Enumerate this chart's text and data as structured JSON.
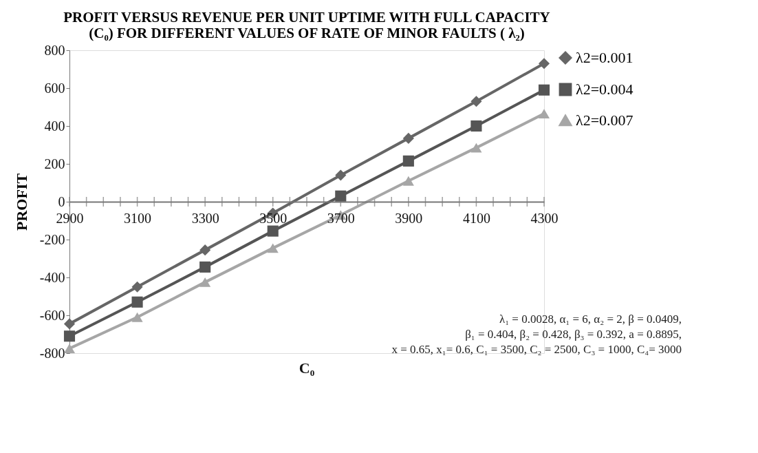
{
  "chart_data": {
    "type": "line",
    "title": "PROFIT VERSUS REVENUE PER UNIT UPTIME WITH FULL CAPACITY (C₀) FOR DIFFERENT VALUES OF RATE OF MINOR FAULTS ( λ₂)",
    "xlabel": "C₀",
    "ylabel": "PROFIT",
    "x": [
      2900,
      3100,
      3300,
      3500,
      3700,
      3900,
      4100,
      4300
    ],
    "series": [
      {
        "name": "λ2=0.001",
        "color": "#666666",
        "marker": "diamond",
        "values": [
          -645,
          -450,
          -255,
          -60,
          140,
          335,
          530,
          730
        ]
      },
      {
        "name": "λ2=0.004",
        "color": "#555555",
        "marker": "square",
        "values": [
          -710,
          -530,
          -345,
          -155,
          30,
          215,
          400,
          590
        ]
      },
      {
        "name": "λ2=0.007",
        "color": "#a6a6a6",
        "marker": "triangle",
        "values": [
          -775,
          -610,
          -425,
          -245,
          -70,
          110,
          285,
          465
        ]
      }
    ],
    "xlim": [
      2900,
      4300
    ],
    "xticks": [
      2900,
      {
        "value": 2950,
        "label": null
      },
      {
        "value": 3000,
        "label": null
      },
      {
        "value": 3050,
        "label": null
      },
      3100,
      {
        "value": 3150,
        "label": null
      },
      {
        "value": 3200,
        "label": null
      },
      {
        "value": 3250,
        "label": null
      },
      3300,
      {
        "value": 3350,
        "label": null
      },
      {
        "value": 3400,
        "label": null
      },
      {
        "value": 3450,
        "label": null
      },
      3500,
      {
        "value": 3550,
        "label": null
      },
      {
        "value": 3600,
        "label": null
      },
      {
        "value": 3650,
        "label": null
      },
      3700,
      {
        "value": 3750,
        "label": null
      },
      {
        "value": 3800,
        "label": null
      },
      {
        "value": 3850,
        "label": null
      },
      3900,
      {
        "value": 3950,
        "label": null
      },
      {
        "value": 4000,
        "label": null
      },
      {
        "value": 4050,
        "label": null
      },
      4100,
      {
        "value": 4150,
        "label": null
      },
      {
        "value": 4200,
        "label": null
      },
      {
        "value": 4250,
        "label": null
      },
      4300
    ],
    "ylim": [
      -800,
      800
    ],
    "yticks": [
      -800,
      -600,
      -400,
      -200,
      0,
      200,
      400,
      600,
      800
    ],
    "grid": false,
    "legend": "right",
    "line_style": "solid",
    "annotations": [
      "λ₁ = 0.0028, α₁ = 6, α₂ = 2, β = 0.0409,",
      "β₁ = 0.404, β₂ = 0.428,  β₃ = 0.392, a = 0.8895,",
      "x = 0.65, x₁= 0.6, C₁ = 3500, C₂ = 2500, C₃ = 1000, C₄= 3000"
    ]
  }
}
